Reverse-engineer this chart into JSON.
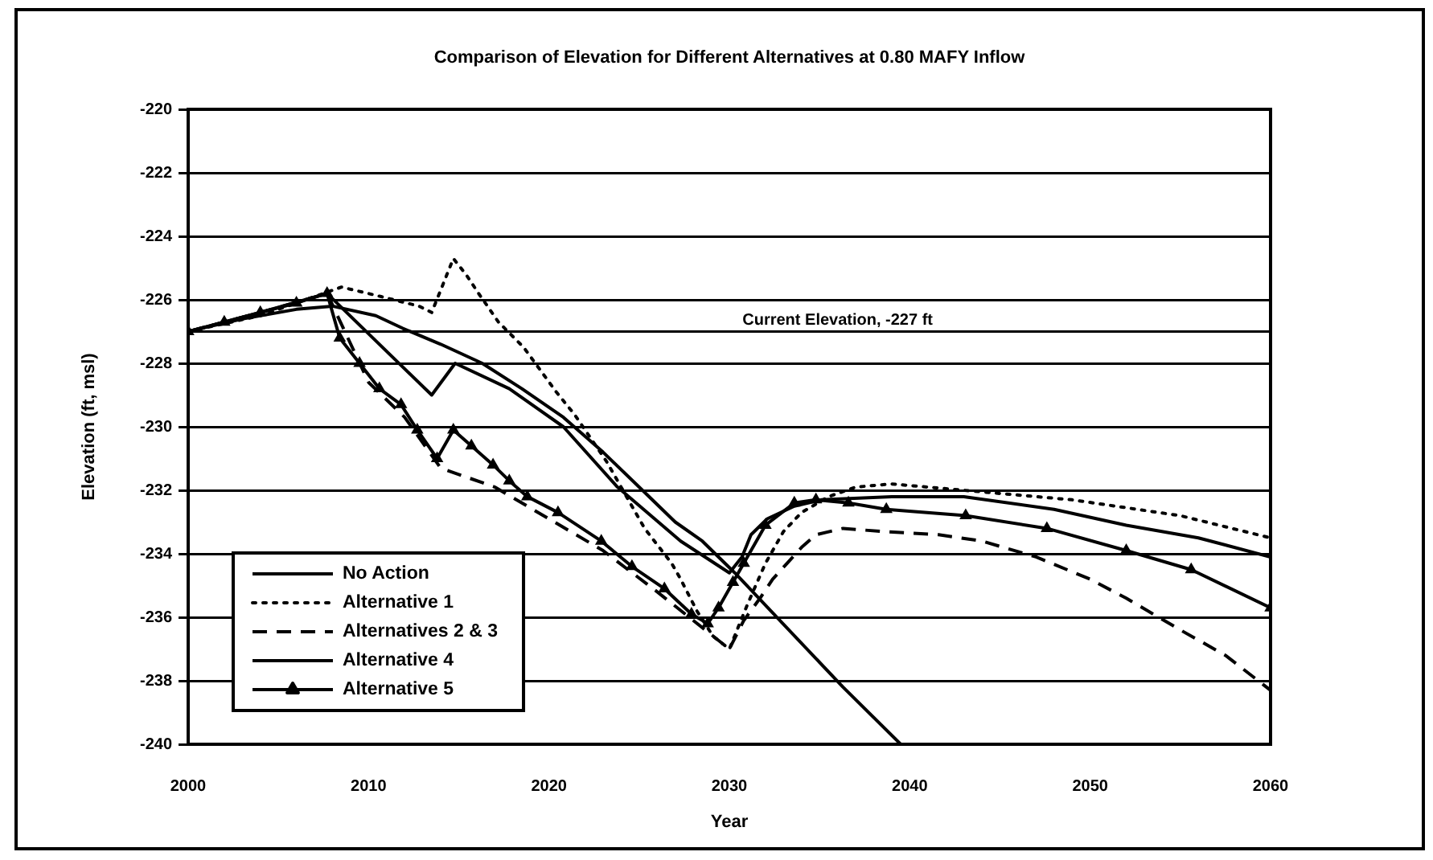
{
  "chart_data": {
    "type": "line",
    "title": "Comparison of Elevation for Different Alternatives at 0.80 MAFY Inflow",
    "xlabel": "Year",
    "ylabel": "Elevation (ft, msl)",
    "series": [
      {
        "name": "No Action",
        "color": "#000000",
        "x": [
          2000,
          2003,
          2006,
          2008,
          2010.4,
          2011.9,
          2014,
          2016.3,
          2018.5,
          2020.8,
          2023,
          2025,
          2027,
          2028.5,
          2030.3,
          2036.3,
          2039.5
        ],
        "values": [
          -227,
          -226.6,
          -226.3,
          -226.2,
          -226.5,
          -226.9,
          -227.4,
          -228,
          -228.8,
          -229.7,
          -230.8,
          -231.9,
          -233,
          -233.6,
          -234.6,
          -238.2,
          -240
        ]
      },
      {
        "name": "Alternative 1",
        "color": "#000000",
        "line_style": "dotted",
        "x": [
          2000,
          2004,
          2008.5,
          2010.7,
          2012.8,
          2013.5,
          2014.7,
          2015.4,
          2016.1,
          2017.2,
          2018.6,
          2020.4,
          2021.4,
          2023.2,
          2025.3,
          2026.8,
          2027.3,
          2028.2,
          2029.1,
          2030,
          2031,
          2032,
          2033,
          2034,
          2035.5,
          2037,
          2039,
          2043,
          2049,
          2055,
          2060
        ],
        "values": [
          -227,
          -226.5,
          -225.6,
          -225.9,
          -226.2,
          -226.4,
          -224.7,
          -225.2,
          -225.8,
          -226.7,
          -227.5,
          -228.9,
          -229.6,
          -231.1,
          -233.2,
          -234.3,
          -234.8,
          -235.8,
          -236.6,
          -237,
          -235.6,
          -234.3,
          -233.3,
          -232.7,
          -232.2,
          -231.9,
          -231.8,
          -232,
          -232.3,
          -232.8,
          -233.5
        ]
      },
      {
        "name": "Alternatives 2 & 3",
        "color": "#000000",
        "line_style": "dashed",
        "x": [
          2000,
          2004,
          2007.7,
          2010,
          2012,
          2014,
          2017,
          2020,
          2023,
          2026,
          2028,
          2030,
          2030.8,
          2031.7,
          2032.4,
          2033.2,
          2034,
          2034.8,
          2036.3,
          2038.5,
          2041.6,
          2044,
          2047,
          2050,
          2052,
          2055,
          2057.5,
          2060
        ],
        "values": [
          -227,
          -226.4,
          -225.8,
          -228.6,
          -229.7,
          -231.3,
          -231.9,
          -232.9,
          -233.9,
          -235.2,
          -236.1,
          -237,
          -236.1,
          -235.4,
          -234.8,
          -234.3,
          -233.8,
          -233.4,
          -233.2,
          -233.3,
          -233.4,
          -233.6,
          -234.1,
          -234.8,
          -235.4,
          -236.4,
          -237.2,
          -238.3
        ]
      },
      {
        "name": "Alternative 4",
        "color": "#000000",
        "x": [
          2000,
          2004,
          2007.7,
          2013.5,
          2014.8,
          2017.8,
          2020.8,
          2023.8,
          2027.3,
          2030,
          2030.7,
          2031.2,
          2032.1,
          2033.6,
          2035.1,
          2039,
          2043,
          2048,
          2052,
          2056,
          2060
        ],
        "values": [
          -227,
          -226.4,
          -225.8,
          -229,
          -228,
          -228.8,
          -230,
          -231.9,
          -233.6,
          -234.6,
          -234.1,
          -233.4,
          -232.9,
          -232.5,
          -232.3,
          -232.2,
          -232.2,
          -232.6,
          -233.1,
          -233.5,
          -234.1
        ]
      },
      {
        "name": "Alternative 5",
        "color": "#000000",
        "marker": "triangle",
        "x": [
          2000,
          2002,
          2004,
          2006,
          2007.7,
          2008.4,
          2009.5,
          2010.6,
          2011.8,
          2012.7,
          2013.8,
          2014.7,
          2015.7,
          2016.9,
          2017.8,
          2018.8,
          2020.5,
          2022.9,
          2024.6,
          2026.4,
          2027.9,
          2028.8,
          2029.4,
          2030.2,
          2030.8,
          2032,
          2033.6,
          2034.8,
          2036.6,
          2038.7,
          2043.1,
          2047.6,
          2052,
          2055.6,
          2060
        ],
        "values": [
          -227,
          -226.7,
          -226.4,
          -226.1,
          -225.8,
          -227.2,
          -228,
          -228.8,
          -229.3,
          -230.1,
          -231,
          -230.1,
          -230.6,
          -231.2,
          -231.7,
          -232.2,
          -232.7,
          -233.6,
          -234.4,
          -235.1,
          -235.9,
          -236.2,
          -235.7,
          -234.9,
          -234.3,
          -233.1,
          -232.4,
          -232.3,
          -232.4,
          -232.6,
          -232.8,
          -233.2,
          -233.9,
          -234.5,
          -235.7
        ]
      }
    ],
    "xlim": [
      2000,
      2060
    ],
    "xticks": [
      2000,
      2010,
      2020,
      2030,
      2040,
      2050,
      2060
    ],
    "ylim": [
      -240,
      -220
    ],
    "yticks": [
      -240,
      -238,
      -236,
      -234,
      -232,
      -230,
      -228,
      -226,
      -224,
      -222,
      -220
    ],
    "ref_lines": [
      {
        "axis": "y",
        "value": -227,
        "label": "Current Elevation, -227 ft"
      }
    ],
    "grid": "y",
    "legend": "bottom left",
    "marker": "none",
    "line_style": "solid"
  }
}
